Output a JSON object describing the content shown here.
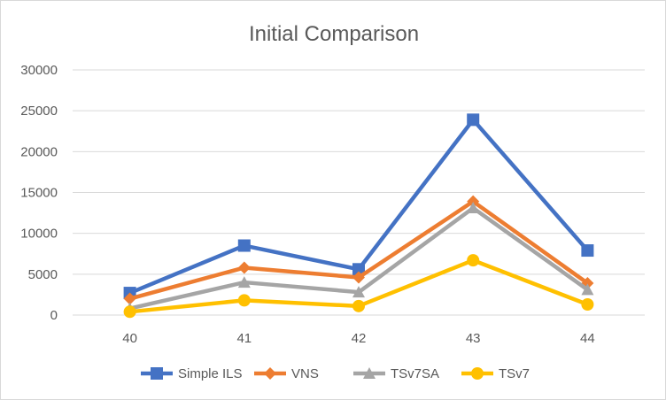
{
  "chart_data": {
    "type": "line",
    "title": "Initial Comparison",
    "categories": [
      "40",
      "41",
      "42",
      "43",
      "44"
    ],
    "ylim": [
      0,
      30000
    ],
    "yticks": [
      0,
      5000,
      10000,
      15000,
      20000,
      25000,
      30000
    ],
    "grid": true,
    "legend_position": "bottom",
    "series": [
      {
        "name": "Simple ILS",
        "values": [
          2700,
          8500,
          5600,
          23900,
          7900
        ],
        "color": "#4472c4",
        "marker": "square"
      },
      {
        "name": "VNS",
        "values": [
          2000,
          5800,
          4600,
          13900,
          3900
        ],
        "color": "#ed7d31",
        "marker": "diamond"
      },
      {
        "name": "TSv7SA",
        "values": [
          800,
          4000,
          2800,
          13100,
          3100
        ],
        "color": "#a5a5a5",
        "marker": "triangle"
      },
      {
        "name": "TSv7",
        "values": [
          400,
          1800,
          1100,
          6700,
          1300
        ],
        "color": "#ffc000",
        "marker": "circle"
      }
    ]
  }
}
